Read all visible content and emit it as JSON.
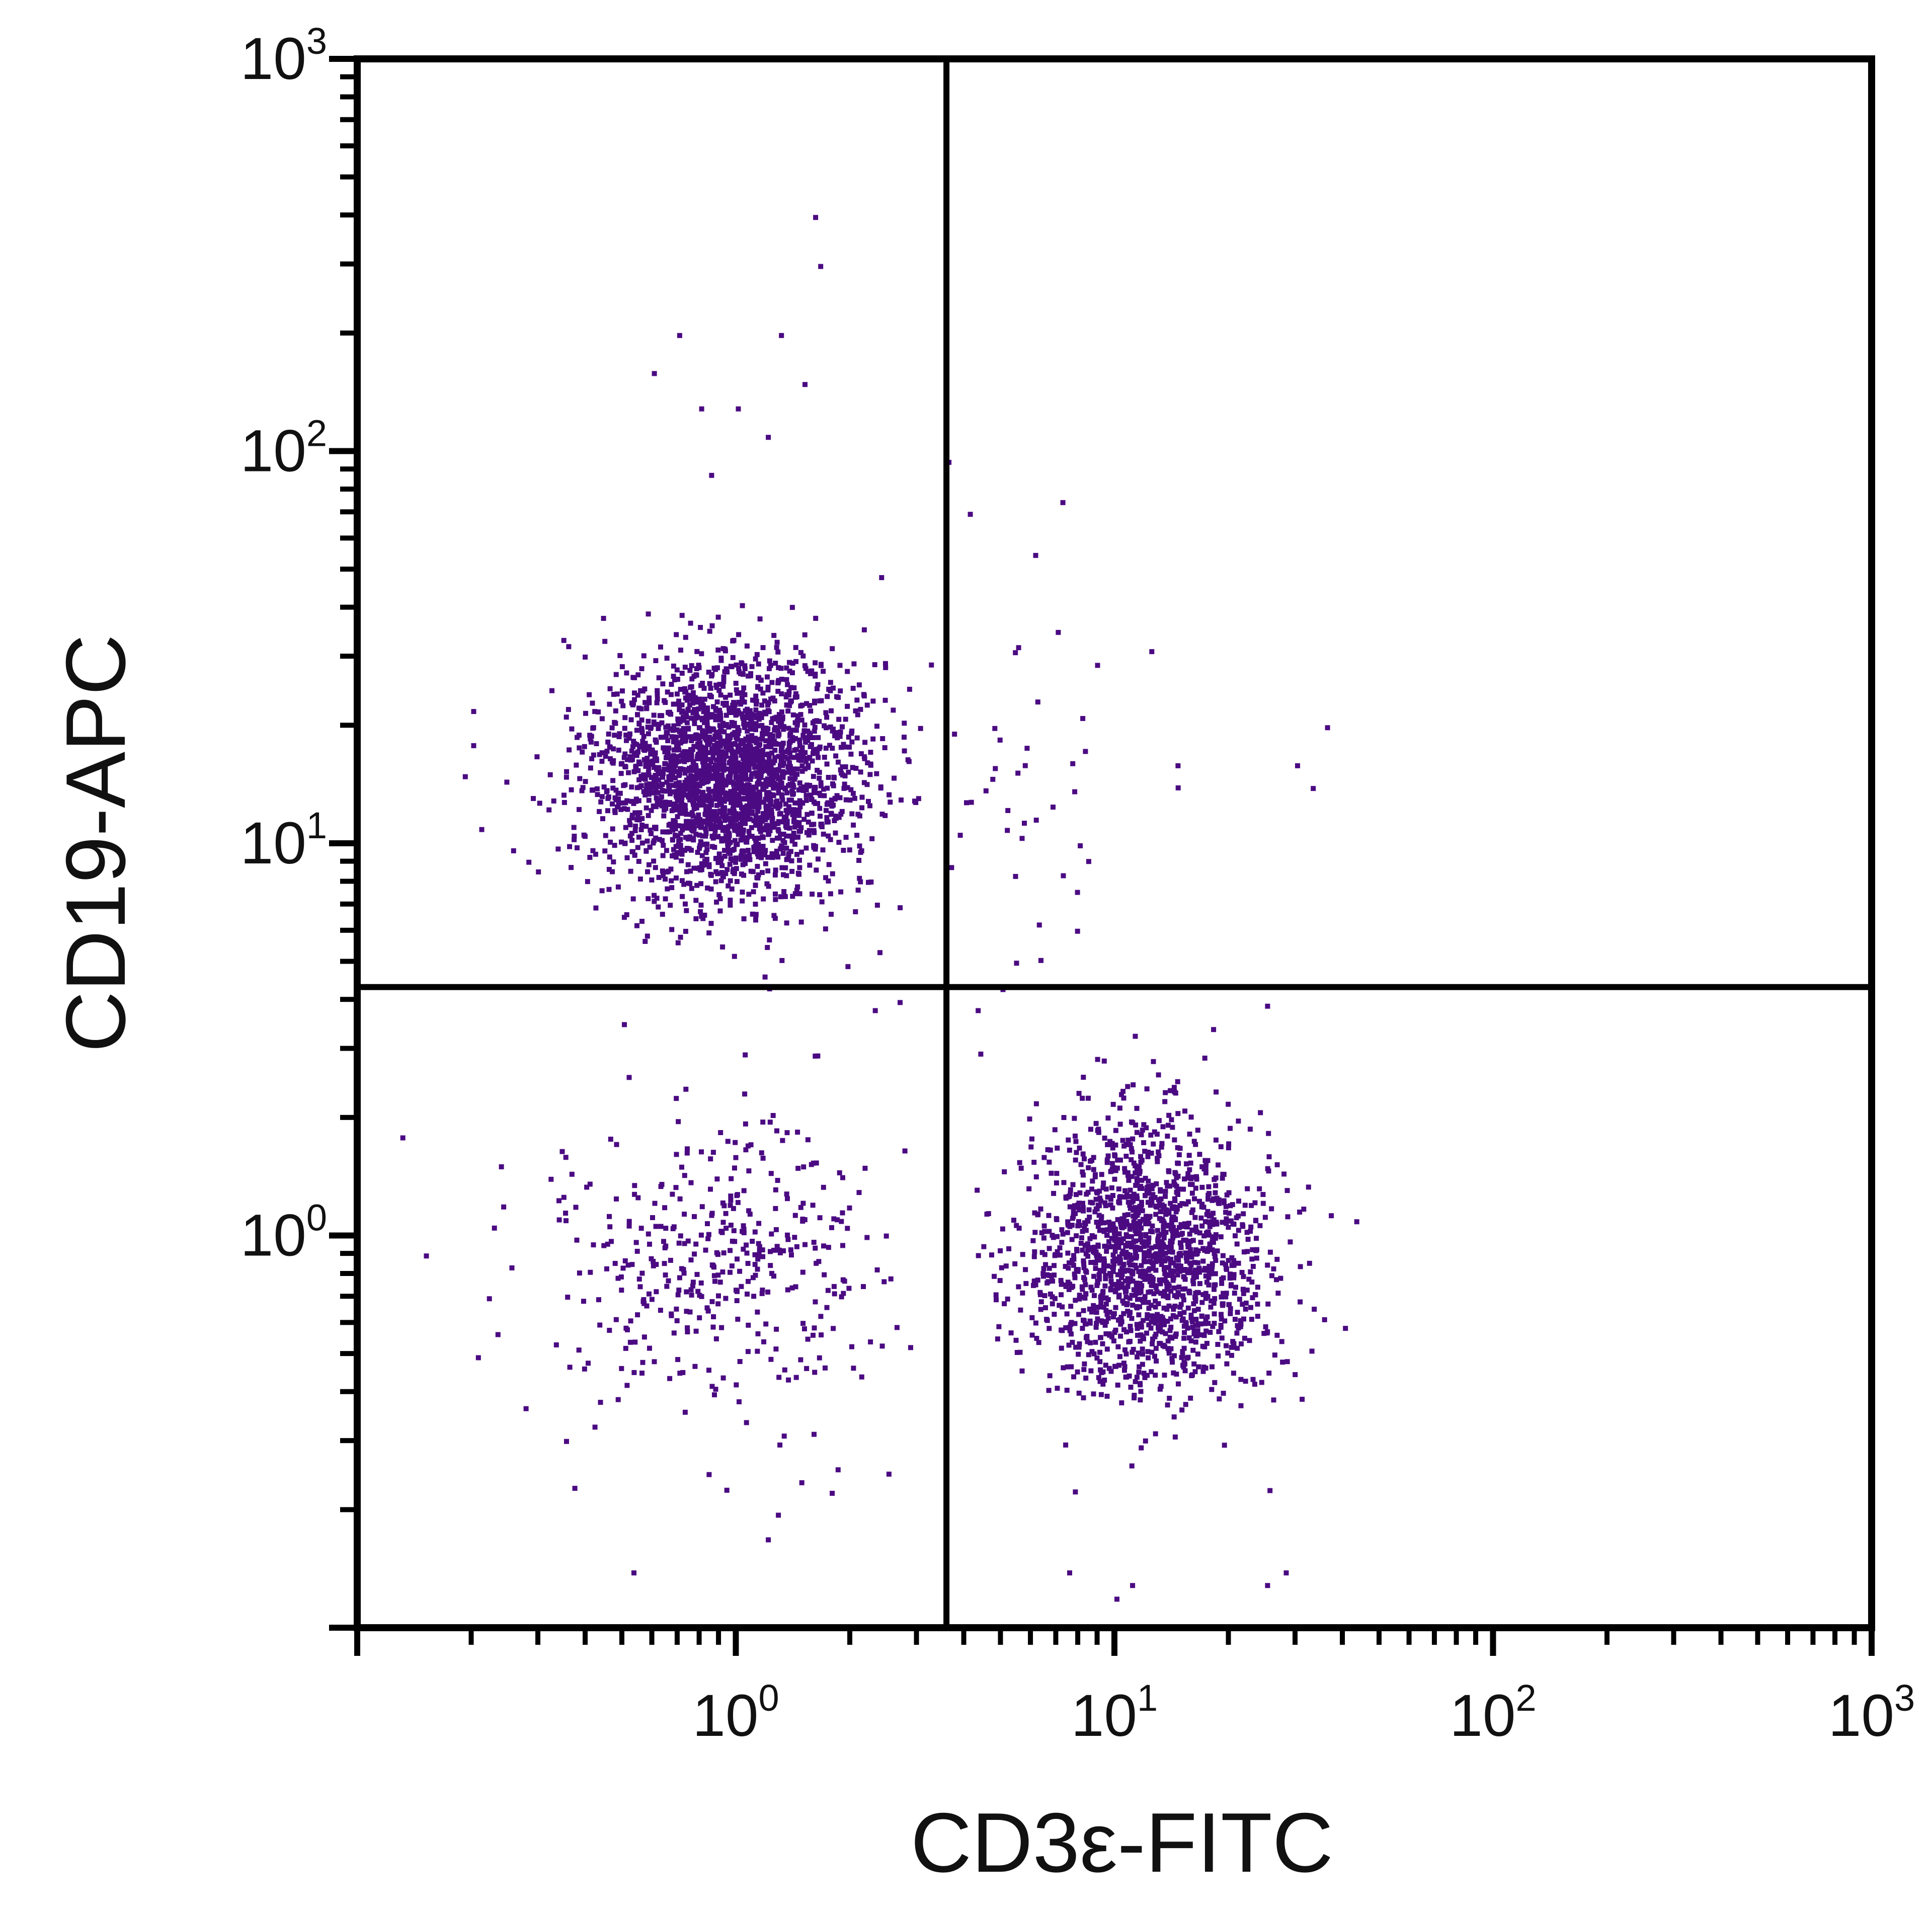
{
  "chart_data": {
    "type": "scatter",
    "title": "",
    "xlabel": "CD3ε-FITC",
    "ylabel": "CD19-APC",
    "x_scale": "log",
    "y_scale": "log",
    "xlim": [
      0.1,
      1000
    ],
    "ylim": [
      0.1,
      1000
    ],
    "x_ticks": [
      {
        "base": "10",
        "exp": "0",
        "value": 1
      },
      {
        "base": "10",
        "exp": "1",
        "value": 10
      },
      {
        "base": "10",
        "exp": "2",
        "value": 100
      },
      {
        "base": "10",
        "exp": "3",
        "value": 1000
      }
    ],
    "y_ticks": [
      {
        "base": "10",
        "exp": "0",
        "value": 1
      },
      {
        "base": "10",
        "exp": "1",
        "value": 10
      },
      {
        "base": "10",
        "exp": "2",
        "value": 100
      },
      {
        "base": "10",
        "exp": "3",
        "value": 1000
      }
    ],
    "grid": false,
    "legend": "none",
    "point_color": "#4b0a82",
    "quadrant_gates": {
      "x": 3.6,
      "y": 4.3
    },
    "series": [
      {
        "populations": [
          {
            "cx": 0.95,
            "cy": 15,
            "sx": 0.17,
            "sy": 0.15,
            "n": 2600
          },
          {
            "cx": 12,
            "cy": 0.9,
            "sx": 0.16,
            "sy": 0.17,
            "n": 1700
          },
          {
            "cx": 0.9,
            "cy": 0.85,
            "sx": 0.22,
            "sy": 0.2,
            "n": 420
          },
          {
            "cx": 5.5,
            "cy": 12,
            "sx": 0.2,
            "sy": 0.22,
            "n": 40
          }
        ],
        "outliers": [
          [
            1.6,
            400
          ],
          [
            1.65,
            300
          ],
          [
            0.7,
            200
          ],
          [
            1.3,
            200
          ],
          [
            0.6,
            160
          ],
          [
            1.5,
            150
          ],
          [
            1.0,
            130
          ],
          [
            0.8,
            130
          ],
          [
            1.2,
            110
          ],
          [
            0.85,
            88
          ],
          [
            4.1,
            70
          ],
          [
            7.2,
            75
          ],
          [
            3.6,
            95
          ],
          [
            6.1,
            55
          ],
          [
            7.0,
            35
          ],
          [
            5.5,
            32
          ],
          [
            14.5,
            16
          ],
          [
            30,
            16
          ],
          [
            33,
            14
          ],
          [
            36,
            20
          ],
          [
            8.0,
            10
          ],
          [
            6.3,
            5.1
          ],
          [
            0.2,
            22
          ],
          [
            0.2,
            18
          ],
          [
            0.19,
            15
          ],
          [
            0.21,
            11
          ],
          [
            0.15,
            0.9
          ],
          [
            0.22,
            0.7
          ],
          [
            0.24,
            1.2
          ],
          [
            0.13,
            1.8
          ],
          [
            0.37,
            0.23
          ],
          [
            0.53,
            0.14
          ],
          [
            2.5,
            0.25
          ],
          [
            1.2,
            0.17
          ],
          [
            7.5,
            0.14
          ],
          [
            10,
            0.12
          ],
          [
            25,
            0.13
          ],
          [
            28,
            0.14
          ],
          [
            0.5,
            3.5
          ],
          [
            2.3,
            3.8
          ],
          [
            5.0,
            4.3
          ],
          [
            18,
            3.4
          ],
          [
            25,
            3.9
          ],
          [
            4.3,
            3.8
          ],
          [
            12,
            2.4
          ],
          [
            11,
            0.13
          ],
          [
            43,
            1.1
          ]
        ]
      }
    ]
  }
}
